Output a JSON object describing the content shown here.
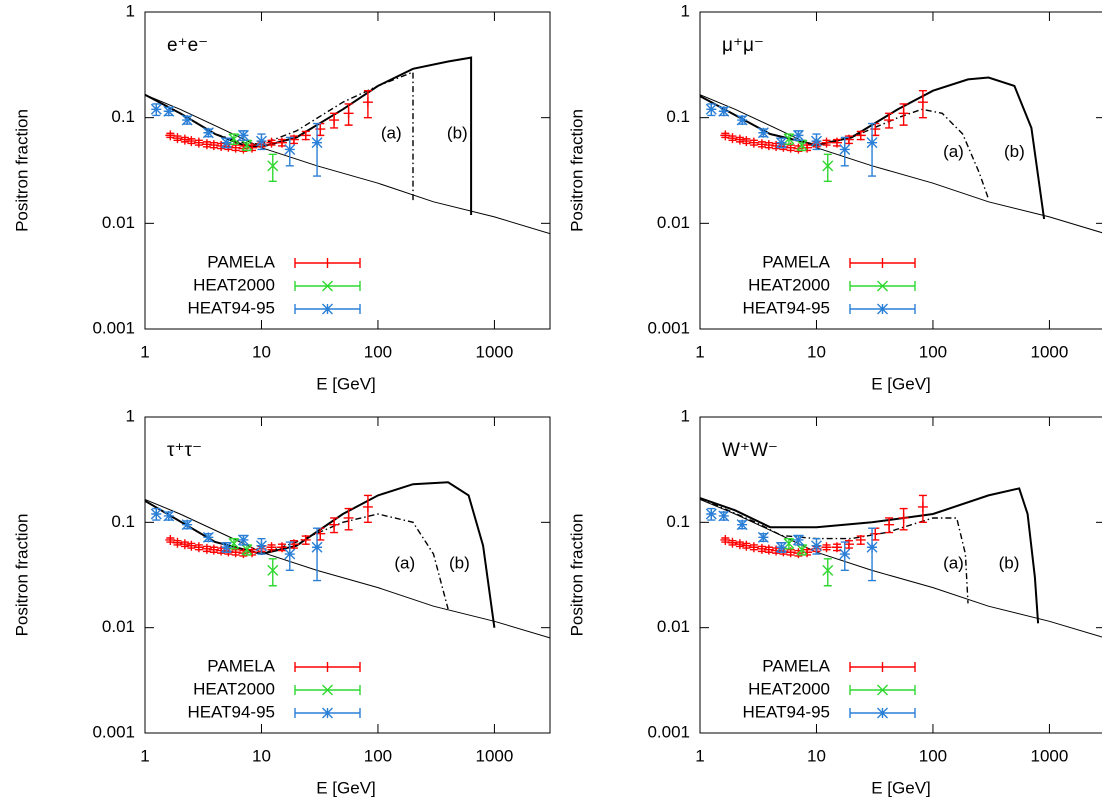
{
  "chart_data": [
    {
      "type": "line",
      "title": "e⁺e⁻",
      "xlabel": "E [GeV]",
      "ylabel": "Positron fraction",
      "log_x": true,
      "log_y": true,
      "xlim": [
        1,
        3000
      ],
      "ylim": [
        0.001,
        1
      ],
      "xticks": [
        1,
        10,
        100,
        1000
      ],
      "yticks": [
        0.001,
        0.01,
        0.1,
        1
      ],
      "legend": "lower left",
      "annotations": [
        {
          "text": "(a)",
          "x": 130,
          "y": 0.07
        },
        {
          "text": "(b)",
          "x": 480,
          "y": 0.07
        }
      ],
      "curves": [
        {
          "style": "thin",
          "x": [
            1,
            2,
            5,
            10,
            30,
            100,
            300,
            1000,
            3000
          ],
          "values": [
            0.165,
            0.12,
            0.075,
            0.052,
            0.035,
            0.024,
            0.016,
            0.0115,
            0.008
          ]
        },
        {
          "style": "dashdot",
          "x": [
            1,
            2,
            4,
            7,
            10,
            20,
            50,
            100,
            200,
            200
          ],
          "values": [
            0.165,
            0.11,
            0.07,
            0.058,
            0.056,
            0.075,
            0.14,
            0.2,
            0.27,
            0.016
          ]
        },
        {
          "style": "thick",
          "x": [
            1,
            2,
            4,
            7,
            10,
            20,
            50,
            100,
            200,
            400,
            630,
            630
          ],
          "values": [
            0.165,
            0.11,
            0.07,
            0.055,
            0.053,
            0.065,
            0.12,
            0.2,
            0.29,
            0.34,
            0.37,
            0.012
          ]
        }
      ],
      "series": [
        {
          "name": "PAMELA",
          "color": "#ff0000",
          "marker": "plus",
          "x": [
            1.65,
            1.9,
            2.2,
            2.5,
            2.9,
            3.4,
            3.9,
            4.5,
            5.2,
            6.0,
            7.0,
            8.3,
            10.0,
            12.2,
            15.0,
            19,
            24,
            32,
            42,
            56,
            82
          ],
          "values": [
            0.068,
            0.064,
            0.062,
            0.06,
            0.058,
            0.056,
            0.055,
            0.054,
            0.053,
            0.052,
            0.051,
            0.052,
            0.056,
            0.058,
            0.058,
            0.062,
            0.068,
            0.078,
            0.095,
            0.11,
            0.14
          ],
          "errors": [
            0.003,
            0.003,
            0.003,
            0.003,
            0.003,
            0.003,
            0.003,
            0.003,
            0.003,
            0.003,
            0.003,
            0.003,
            0.003,
            0.003,
            0.004,
            0.005,
            0.006,
            0.01,
            0.015,
            0.025,
            0.04
          ]
        },
        {
          "name": "HEAT2000",
          "color": "#2fd82f",
          "marker": "cross",
          "x": [
            5.8,
            7.5,
            12.5
          ],
          "values": [
            0.063,
            0.055,
            0.035
          ],
          "errors": [
            0.007,
            0.006,
            0.01
          ]
        },
        {
          "name": "HEAT94-95",
          "color": "#2a7fd6",
          "marker": "star",
          "x": [
            1.25,
            1.6,
            2.3,
            3.5,
            5,
            7,
            10,
            17.5,
            30
          ],
          "values": [
            0.12,
            0.115,
            0.095,
            0.072,
            0.058,
            0.068,
            0.06,
            0.05,
            0.058
          ],
          "errors": [
            0.015,
            0.01,
            0.008,
            0.006,
            0.006,
            0.007,
            0.01,
            0.015,
            0.03
          ]
        }
      ]
    },
    {
      "type": "line",
      "title": "μ⁺μ⁻",
      "xlabel": "E [GeV]",
      "ylabel": "Positron fraction",
      "log_x": true,
      "log_y": true,
      "xlim": [
        1,
        3000
      ],
      "ylim": [
        0.001,
        1
      ],
      "xticks": [
        1,
        10,
        100,
        1000
      ],
      "yticks": [
        0.001,
        0.01,
        0.1,
        1
      ],
      "legend": "lower left",
      "annotations": [
        {
          "text": "(a)",
          "x": 150,
          "y": 0.047
        },
        {
          "text": "(b)",
          "x": 500,
          "y": 0.047
        }
      ],
      "curves": [
        {
          "style": "thin",
          "x": [
            1,
            2,
            5,
            10,
            30,
            100,
            300,
            1000,
            3000
          ],
          "values": [
            0.165,
            0.12,
            0.075,
            0.052,
            0.035,
            0.024,
            0.016,
            0.0115,
            0.008
          ]
        },
        {
          "style": "dashdot",
          "x": [
            1,
            4,
            10,
            20,
            50,
            80,
            120,
            180,
            250,
            300
          ],
          "values": [
            0.16,
            0.07,
            0.055,
            0.065,
            0.1,
            0.12,
            0.11,
            0.07,
            0.03,
            0.017
          ]
        },
        {
          "style": "thick",
          "x": [
            1,
            4,
            10,
            20,
            50,
            100,
            200,
            300,
            500,
            700,
            900
          ],
          "values": [
            0.16,
            0.07,
            0.055,
            0.065,
            0.12,
            0.18,
            0.23,
            0.24,
            0.2,
            0.08,
            0.011
          ]
        }
      ],
      "series": [
        {
          "name": "PAMELA",
          "color": "#ff0000",
          "marker": "plus",
          "x": [
            1.65,
            1.9,
            2.2,
            2.5,
            2.9,
            3.4,
            3.9,
            4.5,
            5.2,
            6.0,
            7.0,
            8.3,
            10.0,
            12.2,
            15.0,
            19,
            24,
            32,
            42,
            56,
            82
          ],
          "values": [
            0.068,
            0.064,
            0.062,
            0.06,
            0.058,
            0.056,
            0.055,
            0.054,
            0.053,
            0.052,
            0.051,
            0.052,
            0.056,
            0.058,
            0.058,
            0.062,
            0.068,
            0.078,
            0.095,
            0.11,
            0.14
          ],
          "errors": [
            0.003,
            0.003,
            0.003,
            0.003,
            0.003,
            0.003,
            0.003,
            0.003,
            0.003,
            0.003,
            0.003,
            0.003,
            0.003,
            0.003,
            0.004,
            0.005,
            0.006,
            0.01,
            0.015,
            0.025,
            0.04
          ]
        },
        {
          "name": "HEAT2000",
          "color": "#2fd82f",
          "marker": "cross",
          "x": [
            5.8,
            7.5,
            12.5
          ],
          "values": [
            0.063,
            0.055,
            0.035
          ],
          "errors": [
            0.007,
            0.006,
            0.01
          ]
        },
        {
          "name": "HEAT94-95",
          "color": "#2a7fd6",
          "marker": "star",
          "x": [
            1.25,
            1.6,
            2.3,
            3.5,
            5,
            7,
            10,
            17.5,
            30
          ],
          "values": [
            0.12,
            0.115,
            0.095,
            0.072,
            0.058,
            0.068,
            0.06,
            0.05,
            0.058
          ],
          "errors": [
            0.015,
            0.01,
            0.008,
            0.006,
            0.006,
            0.007,
            0.01,
            0.015,
            0.03
          ]
        }
      ]
    },
    {
      "type": "line",
      "title": "τ⁺τ⁻",
      "xlabel": "E [GeV]",
      "ylabel": "Positron fraction",
      "log_x": true,
      "log_y": true,
      "xlim": [
        1,
        3000
      ],
      "ylim": [
        0.001,
        1
      ],
      "xticks": [
        1,
        10,
        100,
        1000
      ],
      "yticks": [
        0.001,
        0.01,
        0.1,
        1
      ],
      "legend": "lower left",
      "annotations": [
        {
          "text": "(a)",
          "x": 170,
          "y": 0.04
        },
        {
          "text": "(b)",
          "x": 500,
          "y": 0.04
        }
      ],
      "curves": [
        {
          "style": "thin",
          "x": [
            1,
            2,
            5,
            10,
            30,
            100,
            300,
            1000,
            3000
          ],
          "values": [
            0.165,
            0.12,
            0.075,
            0.052,
            0.035,
            0.024,
            0.016,
            0.0115,
            0.008
          ]
        },
        {
          "style": "dashdot",
          "x": [
            1,
            4,
            10,
            20,
            50,
            100,
            200,
            300,
            400
          ],
          "values": [
            0.16,
            0.065,
            0.05,
            0.065,
            0.1,
            0.12,
            0.1,
            0.05,
            0.015
          ]
        },
        {
          "style": "thick",
          "x": [
            1,
            4,
            10,
            20,
            50,
            100,
            200,
            400,
            600,
            800,
            1000
          ],
          "values": [
            0.16,
            0.065,
            0.05,
            0.06,
            0.12,
            0.18,
            0.23,
            0.24,
            0.18,
            0.06,
            0.01
          ]
        }
      ],
      "series": [
        {
          "name": "PAMELA",
          "color": "#ff0000",
          "marker": "plus",
          "x": [
            1.65,
            1.9,
            2.2,
            2.5,
            2.9,
            3.4,
            3.9,
            4.5,
            5.2,
            6.0,
            7.0,
            8.3,
            10.0,
            12.2,
            15.0,
            19,
            24,
            32,
            42,
            56,
            82
          ],
          "values": [
            0.068,
            0.064,
            0.062,
            0.06,
            0.058,
            0.056,
            0.055,
            0.054,
            0.053,
            0.052,
            0.051,
            0.052,
            0.056,
            0.058,
            0.058,
            0.062,
            0.068,
            0.078,
            0.095,
            0.11,
            0.14
          ],
          "errors": [
            0.003,
            0.003,
            0.003,
            0.003,
            0.003,
            0.003,
            0.003,
            0.003,
            0.003,
            0.003,
            0.003,
            0.003,
            0.003,
            0.003,
            0.004,
            0.005,
            0.006,
            0.01,
            0.015,
            0.025,
            0.04
          ]
        },
        {
          "name": "HEAT2000",
          "color": "#2fd82f",
          "marker": "cross",
          "x": [
            5.8,
            7.5,
            12.5
          ],
          "values": [
            0.063,
            0.055,
            0.035
          ],
          "errors": [
            0.007,
            0.006,
            0.01
          ]
        },
        {
          "name": "HEAT94-95",
          "color": "#2a7fd6",
          "marker": "star",
          "x": [
            1.25,
            1.6,
            2.3,
            3.5,
            5,
            7,
            10,
            17.5,
            30
          ],
          "values": [
            0.12,
            0.115,
            0.095,
            0.072,
            0.058,
            0.068,
            0.06,
            0.05,
            0.058
          ],
          "errors": [
            0.015,
            0.01,
            0.008,
            0.006,
            0.006,
            0.007,
            0.01,
            0.015,
            0.03
          ]
        }
      ]
    },
    {
      "type": "line",
      "title": "W⁺W⁻",
      "xlabel": "E [GeV]",
      "ylabel": "Positron fraction",
      "log_x": true,
      "log_y": true,
      "xlim": [
        1,
        3000
      ],
      "ylim": [
        0.001,
        1
      ],
      "xticks": [
        1,
        10,
        100,
        1000
      ],
      "yticks": [
        0.001,
        0.01,
        0.1,
        1
      ],
      "legend": "lower left",
      "annotations": [
        {
          "text": "(a)",
          "x": 150,
          "y": 0.04
        },
        {
          "text": "(b)",
          "x": 450,
          "y": 0.04
        }
      ],
      "curves": [
        {
          "style": "thin",
          "x": [
            1,
            2,
            5,
            10,
            30,
            100,
            300,
            1000,
            3000
          ],
          "values": [
            0.165,
            0.12,
            0.075,
            0.052,
            0.035,
            0.024,
            0.016,
            0.0115,
            0.008
          ]
        },
        {
          "style": "dashdot",
          "x": [
            1,
            3,
            5,
            10,
            20,
            40,
            100,
            160,
            190,
            200
          ],
          "values": [
            0.17,
            0.1,
            0.075,
            0.07,
            0.07,
            0.08,
            0.11,
            0.11,
            0.05,
            0.017
          ]
        },
        {
          "style": "thick",
          "x": [
            1,
            2,
            4,
            10,
            30,
            100,
            300,
            550,
            650,
            750,
            800
          ],
          "values": [
            0.17,
            0.13,
            0.09,
            0.09,
            0.1,
            0.12,
            0.18,
            0.21,
            0.12,
            0.03,
            0.011
          ]
        }
      ],
      "series": [
        {
          "name": "PAMELA",
          "color": "#ff0000",
          "marker": "plus",
          "x": [
            1.65,
            1.9,
            2.2,
            2.5,
            2.9,
            3.4,
            3.9,
            4.5,
            5.2,
            6.0,
            7.0,
            8.3,
            10.0,
            12.2,
            15.0,
            19,
            24,
            32,
            42,
            56,
            82
          ],
          "values": [
            0.068,
            0.064,
            0.062,
            0.06,
            0.058,
            0.056,
            0.055,
            0.054,
            0.053,
            0.052,
            0.051,
            0.052,
            0.056,
            0.058,
            0.058,
            0.062,
            0.068,
            0.078,
            0.095,
            0.11,
            0.14
          ],
          "errors": [
            0.003,
            0.003,
            0.003,
            0.003,
            0.003,
            0.003,
            0.003,
            0.003,
            0.003,
            0.003,
            0.003,
            0.003,
            0.003,
            0.003,
            0.004,
            0.005,
            0.006,
            0.01,
            0.015,
            0.025,
            0.04
          ]
        },
        {
          "name": "HEAT2000",
          "color": "#2fd82f",
          "marker": "cross",
          "x": [
            5.8,
            7.5,
            12.5
          ],
          "values": [
            0.063,
            0.055,
            0.035
          ],
          "errors": [
            0.007,
            0.006,
            0.01
          ]
        },
        {
          "name": "HEAT94-95",
          "color": "#2a7fd6",
          "marker": "star",
          "x": [
            1.25,
            1.6,
            2.3,
            3.5,
            5,
            7,
            10,
            17.5,
            30
          ],
          "values": [
            0.12,
            0.115,
            0.095,
            0.072,
            0.058,
            0.068,
            0.06,
            0.05,
            0.058
          ],
          "errors": [
            0.015,
            0.01,
            0.008,
            0.006,
            0.006,
            0.007,
            0.01,
            0.015,
            0.03
          ]
        }
      ]
    }
  ]
}
